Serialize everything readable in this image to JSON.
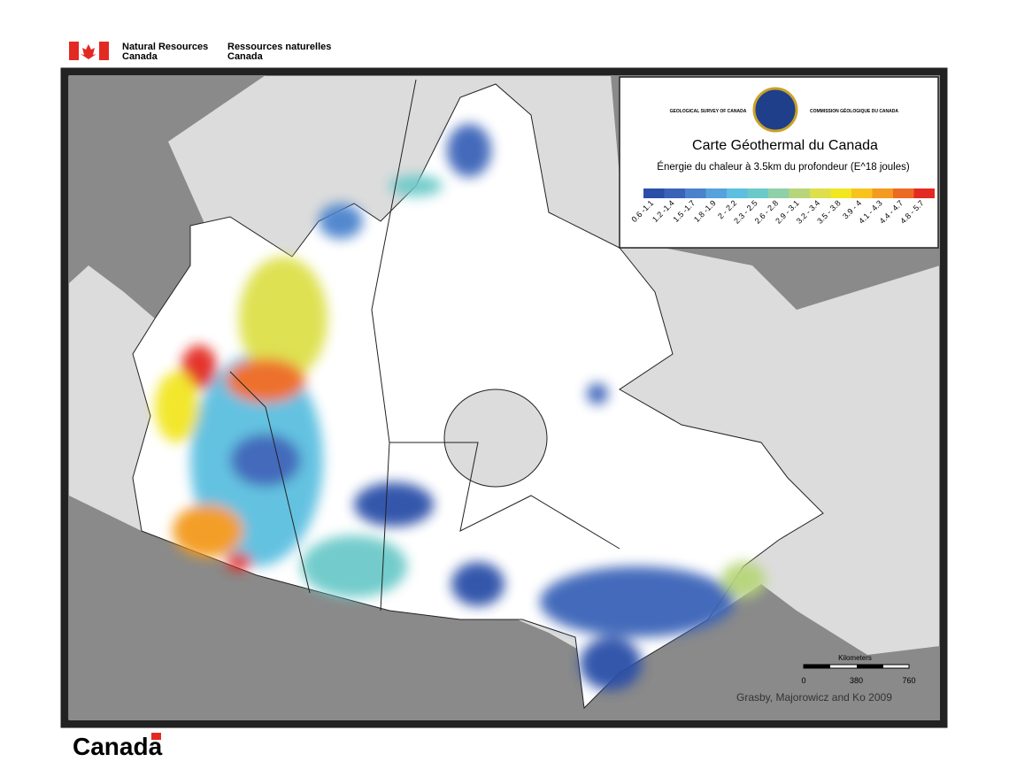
{
  "header": {
    "en_lines": [
      "Natural Resources",
      "Canada"
    ],
    "fr_lines": [
      "Ressources naturelles",
      "Canada"
    ]
  },
  "legend": {
    "agency_en": "GEOLOGICAL SURVEY OF CANADA",
    "agency_fr": "COMMISSION GÉOLOGIQUE DU CANADA",
    "title": "Carte Géothermal du Canada",
    "subtitle": "Énergie du chaleur à 3.5km du profondeur (E^18 joules)",
    "bins": [
      {
        "label": "0.6 -1.1",
        "color": "#2b4fa8"
      },
      {
        "label": "1.2 -1.4",
        "color": "#3a63b8"
      },
      {
        "label": "1.5 -1.7",
        "color": "#4a82cc"
      },
      {
        "label": "1.8 -1.9",
        "color": "#55a2dc"
      },
      {
        "label": "2 - 2.2",
        "color": "#5cbfe0"
      },
      {
        "label": "2.3 - 2.5",
        "color": "#6cc9c9"
      },
      {
        "label": "2.6 - 2.8",
        "color": "#8fd0a8"
      },
      {
        "label": "2.9 - 3.1",
        "color": "#b7d67a"
      },
      {
        "label": "3.2 - 3.4",
        "color": "#dde04a"
      },
      {
        "label": "3.5 - 3.8",
        "color": "#f2e620"
      },
      {
        "label": "3.9 - 4",
        "color": "#f7c31c"
      },
      {
        "label": "4.1 - 4.3",
        "color": "#f39a1f"
      },
      {
        "label": "4.4 - 4.7",
        "color": "#ed6a22"
      },
      {
        "label": "4.8 - 5.7",
        "color": "#e32a22"
      }
    ]
  },
  "scale": {
    "title": "Kilometers",
    "ticks": [
      0,
      380,
      760
    ]
  },
  "credit": "Grasby, Majorowicz and Ko 2009",
  "wordmark": "Canada"
}
